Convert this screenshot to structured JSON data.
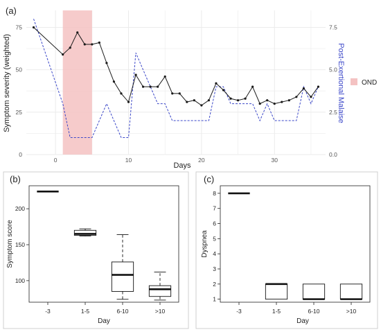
{
  "colors": {
    "severity": "#1a1a1a",
    "pem": "#3a46c8",
    "ond_fill": "#f4c2c2",
    "ond_edge": "#e88a8a",
    "grid": "#ebebeb",
    "axis_text": "#555555"
  },
  "chart_data": [
    {
      "type": "line",
      "panel_label": "(a)",
      "xlabel": "Days",
      "ylabel": "Symptom severity (weighted)",
      "y2label": "Post-Exertional Malaise",
      "xlim": [
        -4,
        37
      ],
      "ylim": [
        0,
        85
      ],
      "y2lim": [
        0,
        8.5
      ],
      "xticks": [
        0,
        10,
        20,
        30
      ],
      "yticks": [
        0,
        25,
        50,
        75
      ],
      "y2ticks": [
        "0.0",
        "2.5",
        "5.0",
        "7.5"
      ],
      "grid": true,
      "legend_position": "right",
      "legend": [
        {
          "label": "OND"
        }
      ],
      "shaded_region": {
        "label": "OND",
        "x": [
          1,
          5
        ]
      },
      "series": [
        {
          "style": "solid-markers",
          "axis": "left",
          "x": [
            -3,
            1,
            2,
            3,
            4,
            5,
            6,
            7,
            8,
            9,
            10,
            11,
            12,
            13,
            14,
            15,
            16,
            17,
            18,
            19,
            20,
            21,
            22,
            23,
            24,
            25,
            26,
            27,
            28,
            29,
            30,
            31,
            32,
            33,
            34,
            35,
            36
          ],
          "values": [
            75,
            59,
            63,
            72,
            65,
            65,
            66,
            54,
            43,
            36,
            31,
            47,
            40,
            40,
            40,
            46,
            36,
            36,
            31,
            32,
            29,
            32,
            42,
            38,
            33,
            32,
            33,
            40,
            30,
            32,
            30,
            31,
            32,
            34,
            39,
            34,
            40
          ]
        },
        {
          "style": "dashed",
          "axis": "right",
          "x": [
            -3,
            1,
            2,
            3,
            4,
            5,
            6,
            7,
            8,
            9,
            10,
            11,
            12,
            13,
            14,
            15,
            16,
            17,
            18,
            19,
            20,
            21,
            22,
            23,
            24,
            25,
            26,
            27,
            28,
            29,
            30,
            31,
            32,
            33,
            34,
            35,
            36
          ],
          "values": [
            8,
            3,
            1,
            1,
            1,
            1,
            2,
            3,
            2,
            1,
            1,
            6,
            5,
            4,
            3,
            3,
            2,
            2,
            2,
            2,
            2,
            2,
            4,
            4,
            3,
            3,
            3,
            3,
            2,
            3,
            2,
            2,
            2,
            2,
            4,
            3,
            4
          ]
        }
      ]
    },
    {
      "type": "box",
      "panel_label": "(b)",
      "xlabel": "Day",
      "ylabel": "Symptom score",
      "ylim": [
        70,
        232
      ],
      "yticks": [
        100,
        150,
        200
      ],
      "categories": [
        "-3",
        "1-5",
        "6-10",
        ">10"
      ],
      "boxes": [
        {
          "min": 224,
          "q1": 224,
          "median": 224,
          "q3": 224,
          "max": 224
        },
        {
          "min": 162,
          "q1": 163,
          "median": 165,
          "q3": 170,
          "max": 172
        },
        {
          "min": 74,
          "q1": 85,
          "median": 108,
          "q3": 126,
          "max": 164
        },
        {
          "min": 73,
          "q1": 78,
          "median": 88,
          "q3": 93,
          "max": 112
        }
      ]
    },
    {
      "type": "box",
      "panel_label": "(c)",
      "xlabel": "Day",
      "ylabel": "Dyspnea",
      "ylim": [
        0.8,
        8.5
      ],
      "yticks": [
        1,
        2,
        3,
        4,
        5,
        6,
        7,
        8
      ],
      "categories": [
        "-3",
        "1-5",
        "6-10",
        ">10"
      ],
      "boxes": [
        {
          "min": 8,
          "q1": 8,
          "median": 8,
          "q3": 8,
          "max": 8
        },
        {
          "min": 1,
          "q1": 1,
          "median": 2,
          "q3": 2,
          "max": 2
        },
        {
          "min": 1,
          "q1": 1,
          "median": 1,
          "q3": 2,
          "max": 2
        },
        {
          "min": 1,
          "q1": 1,
          "median": 1,
          "q3": 2,
          "max": 2
        }
      ]
    }
  ]
}
